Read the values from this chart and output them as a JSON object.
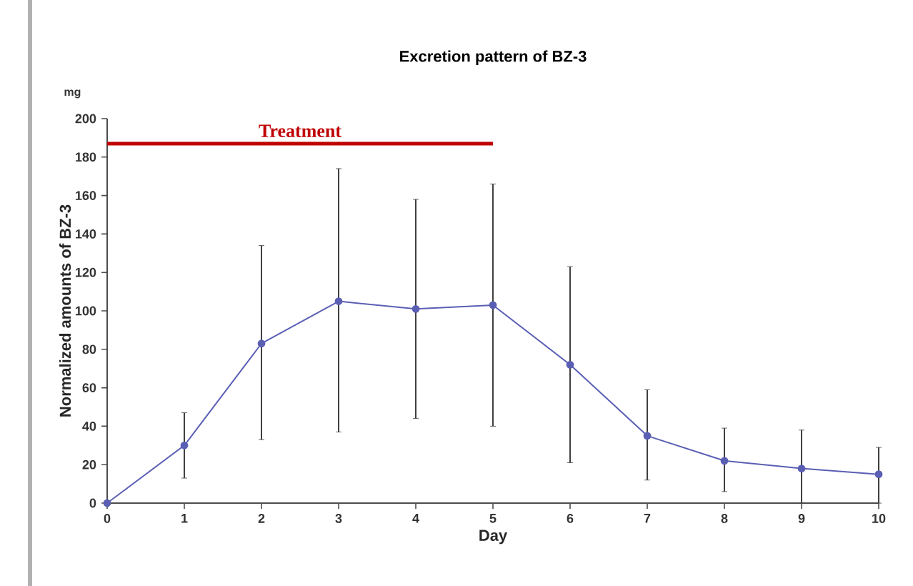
{
  "chart_data": {
    "type": "line",
    "title": "Excretion pattern of BZ-3",
    "xlabel": "Day",
    "ylabel": "Normalized amounts of BZ-3",
    "annotations": [
      "mg"
    ],
    "xlim": [
      0,
      10
    ],
    "ylim": [
      0,
      200
    ],
    "xticks": [
      0,
      1,
      2,
      3,
      4,
      5,
      6,
      7,
      8,
      9,
      10
    ],
    "yticks": [
      0,
      20,
      40,
      60,
      80,
      100,
      120,
      140,
      160,
      180,
      200
    ],
    "grid": false,
    "marker": "circle",
    "series": [
      {
        "x": [
          0,
          1,
          2,
          3,
          4,
          5,
          6,
          7,
          8,
          9,
          10
        ],
        "color": "#5a5fb4",
        "values": [
          0,
          30,
          83,
          105,
          101,
          103,
          72,
          35,
          22,
          18,
          15
        ],
        "errors": [
          null,
          [
            13,
            47
          ],
          [
            33,
            134
          ],
          [
            37,
            174
          ],
          [
            44,
            158
          ],
          [
            40,
            166
          ],
          [
            21,
            123
          ],
          [
            12,
            59
          ],
          [
            6,
            39
          ],
          [
            0,
            38
          ],
          [
            0,
            29
          ]
        ]
      },
      {
        "name": "Treatment",
        "x": [
          0,
          5
        ],
        "color": "#c00000",
        "marker": "none",
        "values": [
          187,
          187
        ]
      }
    ]
  }
}
